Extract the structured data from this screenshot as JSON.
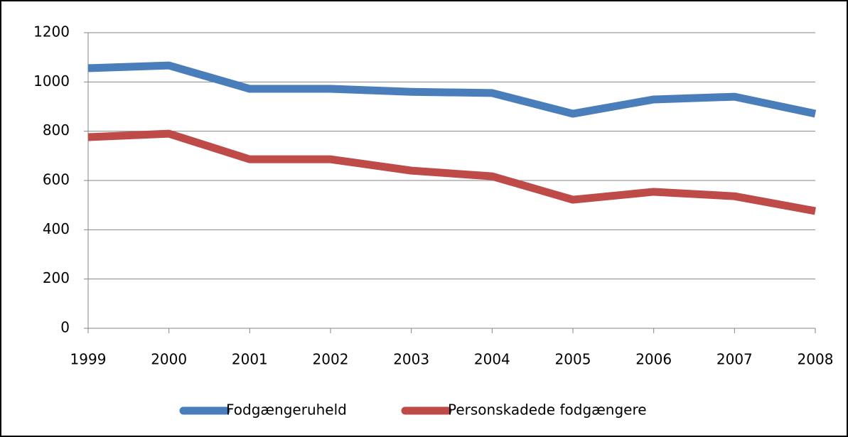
{
  "chart_data": {
    "type": "line",
    "categories": [
      "1999",
      "2000",
      "2001",
      "2002",
      "2003",
      "2004",
      "2005",
      "2006",
      "2007",
      "2008"
    ],
    "series": [
      {
        "name": "Fodgængeruheld",
        "color": "#4a7ebb",
        "values": [
          1056,
          1067,
          972,
          972,
          960,
          955,
          871,
          929,
          940,
          871
        ]
      },
      {
        "name": "Personskadede fodgængere",
        "color": "#be4b48",
        "values": [
          776,
          790,
          686,
          686,
          640,
          617,
          522,
          554,
          536,
          476
        ]
      }
    ],
    "ylim": [
      0,
      1200
    ],
    "yticks": [
      0,
      200,
      400,
      600,
      800,
      1000,
      1200
    ],
    "grid": true,
    "legend": "bottom"
  }
}
